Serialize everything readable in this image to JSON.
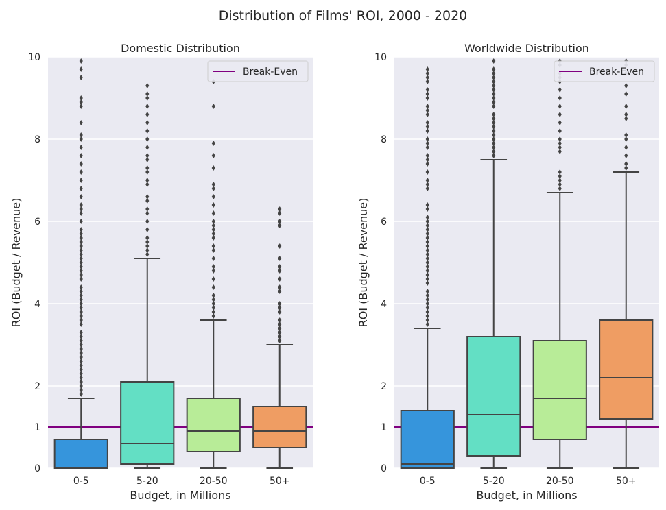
{
  "suptitle": "Distribution of Films' ROI, 2000 - 2020",
  "chart_data": [
    {
      "type": "box",
      "title": "Domestic Distribution",
      "xlabel": "Budget, in Millions",
      "ylabel": "ROI (Budget / Revenue)",
      "ylim": [
        0,
        10
      ],
      "yticks": [
        0,
        1,
        2,
        4,
        6,
        8,
        10
      ],
      "grid": true,
      "legend": {
        "position": "top-right",
        "entries": [
          "Break-Even"
        ]
      },
      "reference_line": {
        "label": "Break-Even",
        "y": 1,
        "color": "#800080"
      },
      "categories": [
        "0-5",
        "5-20",
        "20-50",
        "50+"
      ],
      "colors": [
        "#3695dc",
        "#63dfc4",
        "#b8ec98",
        "#ef9d63"
      ],
      "boxes": [
        {
          "q1": 0,
          "median": 0,
          "q3": 0.7,
          "whisker_low": 0,
          "whisker_high": 1.7,
          "outliers": [
            1.8,
            1.9,
            2.0,
            2.1,
            2.2,
            2.3,
            2.4,
            2.5,
            2.6,
            2.7,
            2.8,
            2.9,
            3.0,
            3.1,
            3.2,
            3.3,
            3.5,
            3.6,
            3.7,
            3.8,
            3.9,
            4.0,
            4.1,
            4.2,
            4.3,
            4.4,
            4.6,
            4.7,
            4.8,
            4.9,
            5.0,
            5.1,
            5.2,
            5.3,
            5.4,
            5.5,
            5.6,
            5.7,
            5.8,
            6.0,
            6.2,
            6.3,
            6.4,
            6.6,
            6.8,
            7.0,
            7.2,
            7.4,
            7.6,
            7.8,
            8.0,
            8.1,
            8.4,
            8.8,
            8.9,
            9.0,
            9.5,
            9.7,
            9.9
          ]
        },
        {
          "q1": 0.1,
          "median": 0.6,
          "q3": 2.1,
          "whisker_low": 0,
          "whisker_high": 5.1,
          "outliers": [
            5.2,
            5.3,
            5.4,
            5.5,
            5.6,
            5.8,
            6.0,
            6.2,
            6.3,
            6.5,
            6.6,
            6.9,
            7.0,
            7.2,
            7.3,
            7.5,
            7.6,
            7.8,
            8.0,
            8.2,
            8.4,
            8.6,
            8.8,
            9.0,
            9.1,
            9.3
          ]
        },
        {
          "q1": 0.4,
          "median": 0.9,
          "q3": 1.7,
          "whisker_low": 0,
          "whisker_high": 3.6,
          "outliers": [
            3.7,
            3.8,
            3.9,
            4.0,
            4.1,
            4.2,
            4.4,
            4.6,
            4.8,
            4.9,
            5.1,
            5.3,
            5.4,
            5.6,
            5.7,
            5.8,
            5.9,
            6.0,
            6.2,
            6.4,
            6.6,
            6.8,
            6.9,
            7.3,
            7.6,
            7.9,
            8.8,
            9.4
          ]
        },
        {
          "q1": 0.5,
          "median": 0.9,
          "q3": 1.5,
          "whisker_low": 0,
          "whisker_high": 3.0,
          "outliers": [
            3.1,
            3.2,
            3.3,
            3.4,
            3.5,
            3.6,
            3.8,
            3.9,
            4.0,
            4.3,
            4.4,
            4.6,
            4.8,
            4.9,
            5.1,
            5.4,
            5.9,
            6.0,
            6.2,
            6.3
          ]
        }
      ]
    },
    {
      "type": "box",
      "title": "Worldwide Distribution",
      "xlabel": "Budget, in Millions",
      "ylabel": "ROI (Budget / Revenue)",
      "ylim": [
        0,
        10
      ],
      "yticks": [
        0,
        1,
        2,
        4,
        6,
        8,
        10
      ],
      "grid": true,
      "legend": {
        "position": "top-right",
        "entries": [
          "Break-Even"
        ]
      },
      "reference_line": {
        "label": "Break-Even",
        "y": 1,
        "color": "#800080"
      },
      "categories": [
        "0-5",
        "5-20",
        "20-50",
        "50+"
      ],
      "colors": [
        "#3695dc",
        "#63dfc4",
        "#b8ec98",
        "#ef9d63"
      ],
      "boxes": [
        {
          "q1": 0,
          "median": 0.1,
          "q3": 1.4,
          "whisker_low": 0,
          "whisker_high": 3.4,
          "outliers": [
            3.5,
            3.6,
            3.7,
            3.8,
            3.9,
            4.0,
            4.1,
            4.2,
            4.3,
            4.5,
            4.6,
            4.7,
            4.8,
            4.9,
            5.0,
            5.1,
            5.2,
            5.3,
            5.4,
            5.5,
            5.6,
            5.7,
            5.8,
            5.9,
            6.0,
            6.1,
            6.3,
            6.4,
            6.8,
            6.9,
            7.0,
            7.2,
            7.4,
            7.5,
            7.6,
            7.8,
            7.9,
            8.0,
            8.2,
            8.3,
            8.4,
            8.6,
            8.7,
            8.8,
            9.0,
            9.1,
            9.2,
            9.4,
            9.5,
            9.6,
            9.7
          ]
        },
        {
          "q1": 0.3,
          "median": 1.3,
          "q3": 3.2,
          "whisker_low": 0,
          "whisker_high": 7.5,
          "outliers": [
            7.6,
            7.7,
            7.8,
            7.9,
            8.0,
            8.1,
            8.2,
            8.3,
            8.4,
            8.5,
            8.6,
            8.8,
            8.9,
            9.0,
            9.1,
            9.2,
            9.3,
            9.4,
            9.5,
            9.6,
            9.7,
            9.9
          ]
        },
        {
          "q1": 0.7,
          "median": 1.7,
          "q3": 3.1,
          "whisker_low": 0,
          "whisker_high": 6.7,
          "outliers": [
            6.8,
            6.9,
            7.0,
            7.1,
            7.2,
            7.7,
            7.8,
            7.9,
            8.0,
            8.2,
            8.4,
            8.6,
            8.8,
            9.0,
            9.2,
            9.4,
            9.5,
            9.6,
            9.8,
            9.9
          ]
        },
        {
          "q1": 1.2,
          "median": 2.2,
          "q3": 3.6,
          "whisker_low": 0,
          "whisker_high": 7.2,
          "outliers": [
            7.3,
            7.4,
            7.6,
            7.8,
            8.0,
            8.1,
            8.5,
            8.6,
            8.8,
            9.1,
            9.3,
            9.6,
            9.8,
            9.9
          ]
        }
      ]
    }
  ]
}
